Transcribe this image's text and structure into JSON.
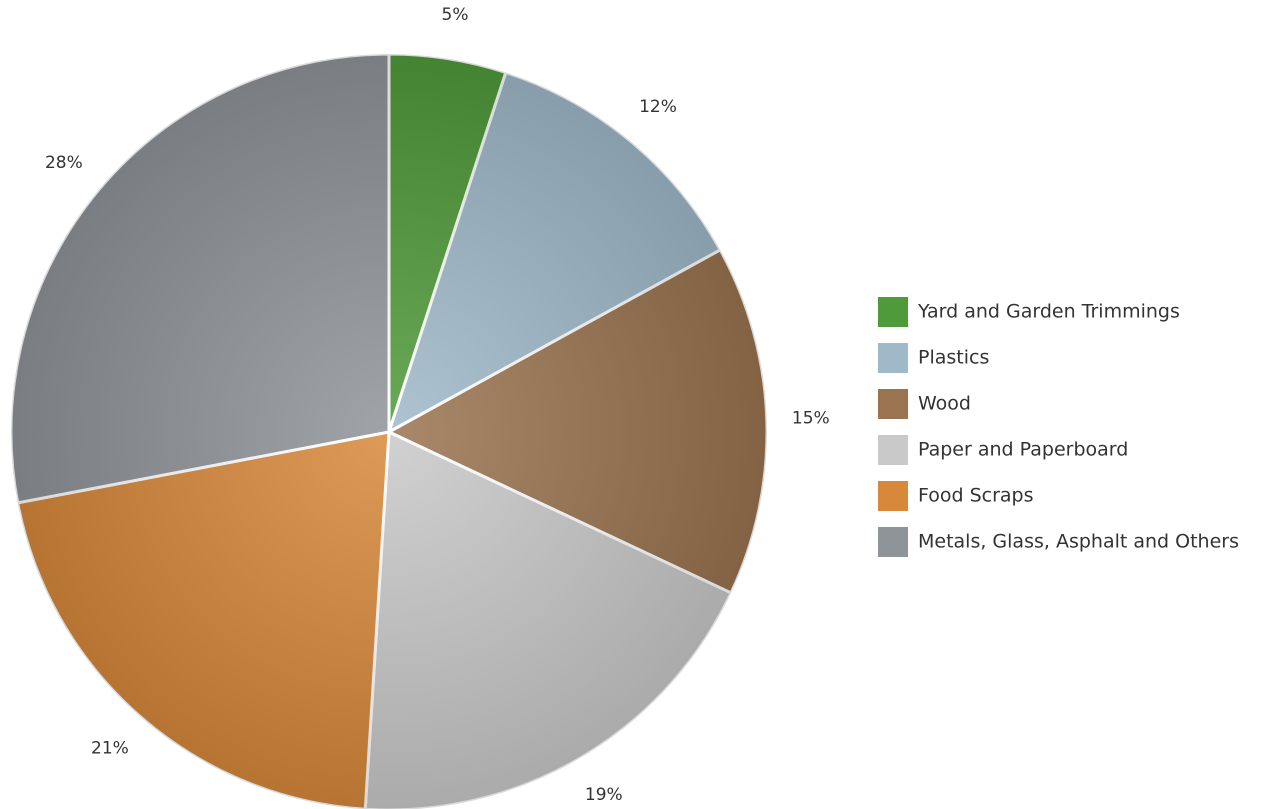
{
  "chart_data": {
    "type": "pie",
    "categories": [
      "Yard and Garden Trimmings",
      "Plastics",
      "Wood",
      "Paper and Paperboard",
      "Food Scraps",
      "Metals, Glass, Asphalt and Others"
    ],
    "values": [
      5,
      12,
      15,
      19,
      21,
      28
    ],
    "value_labels": [
      "5%",
      "12%",
      "15%",
      "19%",
      "21%",
      "28%"
    ],
    "colors": [
      "#4f9a3a",
      "#9fb9c9",
      "#9a7450",
      "#c9c9c9",
      "#d8883a",
      "#8f9499"
    ],
    "legend": "right"
  }
}
